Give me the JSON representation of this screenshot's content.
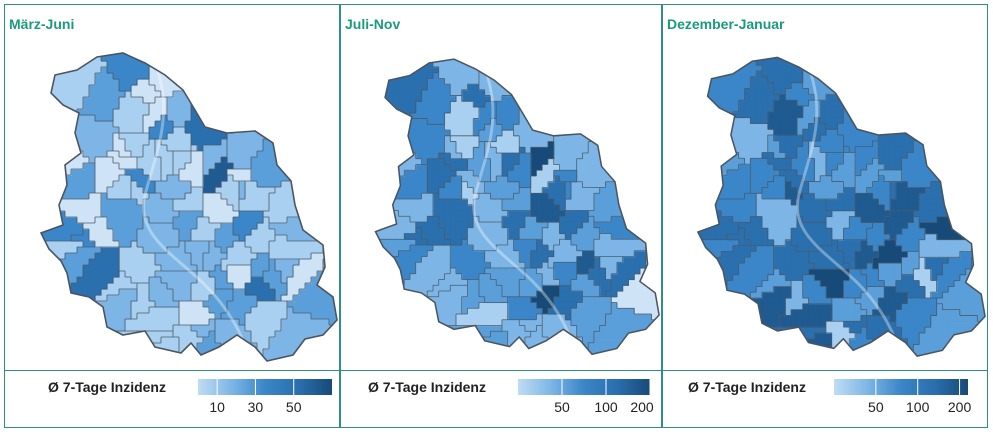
{
  "panels": [
    {
      "title": "März-Juni",
      "legend": {
        "title": "Ø 7-Tage Inzidenz",
        "ticks": [
          "10",
          "30",
          "50"
        ],
        "tick_values": [
          10,
          30,
          50
        ],
        "min": 0,
        "max": 70
      },
      "palette": [
        "#cfe3f6",
        "#a9d0f0",
        "#7db6e6",
        "#5a9fd9",
        "#3a86c8",
        "#2a6fae",
        "#1f5a90",
        "#174a78"
      ],
      "weights": [
        0.2,
        0.3,
        0.25,
        0.12,
        0.08,
        0.04,
        0.01,
        0.0
      ]
    },
    {
      "title": "Juli-Nov",
      "legend": {
        "title": "Ø 7-Tage Inzidenz",
        "ticks": [
          "50",
          "100",
          "200"
        ],
        "tick_values": [
          50,
          100,
          200
        ],
        "min": 25,
        "max": 200
      },
      "palette": [
        "#cfe3f6",
        "#a9d0f0",
        "#7db6e6",
        "#5a9fd9",
        "#3a86c8",
        "#2a6fae",
        "#1f5a90",
        "#174a78"
      ],
      "weights": [
        0.02,
        0.08,
        0.18,
        0.28,
        0.24,
        0.14,
        0.05,
        0.01
      ]
    },
    {
      "title": "Dezember-Januar",
      "legend": {
        "title": "Ø 7-Tage Inzidenz",
        "ticks": [
          "50",
          "100",
          "200"
        ],
        "tick_values": [
          50,
          100,
          200
        ],
        "min": 25,
        "max": 230
      },
      "palette": [
        "#cfe3f6",
        "#a9d0f0",
        "#7db6e6",
        "#5a9fd9",
        "#3a86c8",
        "#2a6fae",
        "#1f5a90",
        "#174a78"
      ],
      "weights": [
        0.0,
        0.03,
        0.08,
        0.18,
        0.28,
        0.26,
        0.13,
        0.04
      ]
    }
  ]
}
